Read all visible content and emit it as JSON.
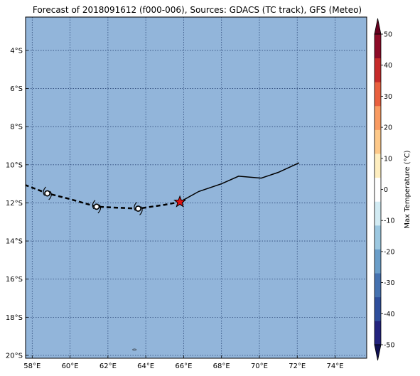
{
  "title": "Forecast of 2018091612 (f000-006), Sources: GDACS (TC track), GFS (Meteo)",
  "map": {
    "lon_range": [
      57.65,
      75.67
    ],
    "lat_range": [
      -20.15,
      -2.25
    ],
    "ocean_color": "#92b5da",
    "grid_color": "#2e4a7a",
    "x_ticks": [
      {
        "value": 58,
        "label": "58°E"
      },
      {
        "value": 60,
        "label": "60°E"
      },
      {
        "value": 62,
        "label": "62°E"
      },
      {
        "value": 64,
        "label": "64°E"
      },
      {
        "value": 66,
        "label": "66°E"
      },
      {
        "value": 68,
        "label": "68°E"
      },
      {
        "value": 70,
        "label": "70°E"
      },
      {
        "value": 72,
        "label": "72°E"
      },
      {
        "value": 74,
        "label": "74°E"
      }
    ],
    "y_ticks": [
      {
        "value": -4,
        "label": "4°S"
      },
      {
        "value": -6,
        "label": "6°S"
      },
      {
        "value": -8,
        "label": "8°S"
      },
      {
        "value": -10,
        "label": "10°S"
      },
      {
        "value": -12,
        "label": "12°S"
      },
      {
        "value": -14,
        "label": "14°S"
      },
      {
        "value": -16,
        "label": "16°S"
      },
      {
        "value": -18,
        "label": "18°S"
      },
      {
        "value": -20,
        "label": "20°S"
      }
    ],
    "past_track": [
      [
        72.1,
        -9.9
      ],
      [
        71.0,
        -10.4
      ],
      [
        70.1,
        -10.7
      ],
      [
        68.9,
        -10.6
      ],
      [
        68.0,
        -11.0
      ],
      [
        66.8,
        -11.4
      ],
      [
        65.8,
        -11.95
      ]
    ],
    "forecast_track": [
      [
        57.6,
        -11.05
      ],
      [
        58.8,
        -11.5
      ],
      [
        60.0,
        -11.8
      ],
      [
        61.4,
        -12.2
      ],
      [
        62.5,
        -12.25
      ],
      [
        63.6,
        -12.3
      ],
      [
        65.0,
        -12.1
      ],
      [
        65.8,
        -11.95
      ]
    ],
    "current_position": {
      "lon": 65.8,
      "lat": -11.95,
      "color": "#dd1111"
    },
    "forecast_points": [
      {
        "lon": 58.8,
        "lat": -11.5
      },
      {
        "lon": 61.4,
        "lat": -12.2
      },
      {
        "lon": 63.6,
        "lat": -12.3
      }
    ],
    "island": {
      "lon": 63.4,
      "lat": -19.7
    }
  },
  "colorbar": {
    "label": "Max Temperature (°C)",
    "min": -50,
    "max": 50,
    "ticks": [
      "50",
      "40",
      "30",
      "20",
      "10",
      "0",
      "-10",
      "-20",
      "-30",
      "-40",
      "-50"
    ],
    "tick_values": [
      50,
      40,
      30,
      20,
      10,
      0,
      -10,
      -20,
      -30,
      -40,
      -50
    ],
    "colors_bottom_to_top": [
      "#23237e",
      "#2f4f9c",
      "#4572b0",
      "#6a9ec9",
      "#9cc8e1",
      "#d2ebf3",
      "#ffffff",
      "#feeec0",
      "#fdc98a",
      "#f99b62",
      "#e9603f",
      "#c62b2b",
      "#8d0b28"
    ]
  }
}
